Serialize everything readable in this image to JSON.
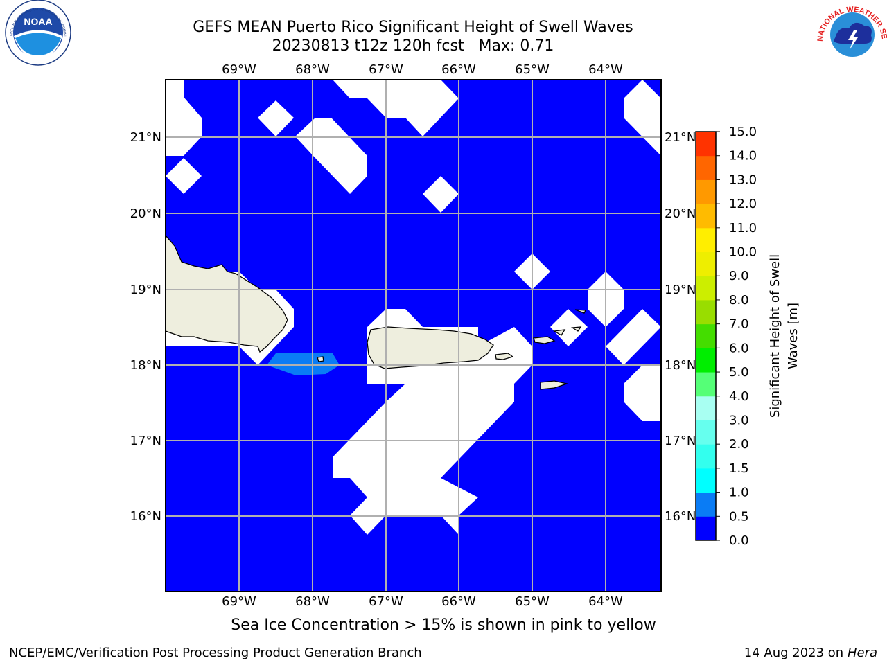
{
  "title_line1": "GEFS MEAN Puerto Rico Significant Height of Swell Waves",
  "title_line2": "20230813 t12z 120h fcst   Max: 0.71",
  "map": {
    "lon_ticks": [
      "69°W",
      "68°W",
      "67°W",
      "66°W",
      "65°W",
      "64°W"
    ],
    "lat_ticks": [
      "21°N",
      "20°N",
      "19°N",
      "18°N",
      "17°N",
      "16°N"
    ],
    "ocean_color": "#0000ff",
    "land_color": "#eeeede",
    "swell_patch_color": "#0a7cf5"
  },
  "colorbar": {
    "label_line1": "Significant Height of Swell",
    "label_line2": "Waves [m]",
    "ticks": [
      "0.0",
      "0.5",
      "1.0",
      "1.5",
      "2.0",
      "3.0",
      "4.0",
      "5.0",
      "6.0",
      "7.0",
      "8.0",
      "9.0",
      "10.0",
      "11.0",
      "12.0",
      "13.0",
      "14.0",
      "15.0"
    ],
    "colors": [
      "#0000ff",
      "#0a7cf5",
      "#00ffff",
      "#33ffee",
      "#66ffee",
      "#a8fff2",
      "#55ff77",
      "#00ee00",
      "#44dd00",
      "#99dd00",
      "#ccee00",
      "#eeee00",
      "#ffee00",
      "#ffbb00",
      "#ff9900",
      "#ff6600",
      "#ff3300",
      "#ff0000"
    ]
  },
  "note": "Sea Ice Concentration > 15% is shown in pink to yellow",
  "footer_left": "NCEP/EMC/Verification Post Processing Product Generation Branch",
  "footer_date": "14 Aug 2023 on",
  "footer_machine": "Hera",
  "logos": {
    "noaa_text": "NOAA",
    "noaa_ring": "NATIONAL OCEANIC AND ATMOSPHERIC ADMINISTRATION · U.S. DEPARTMENT OF COMMERCE",
    "nws_ring": "NATIONAL WEATHER SERVICE"
  }
}
